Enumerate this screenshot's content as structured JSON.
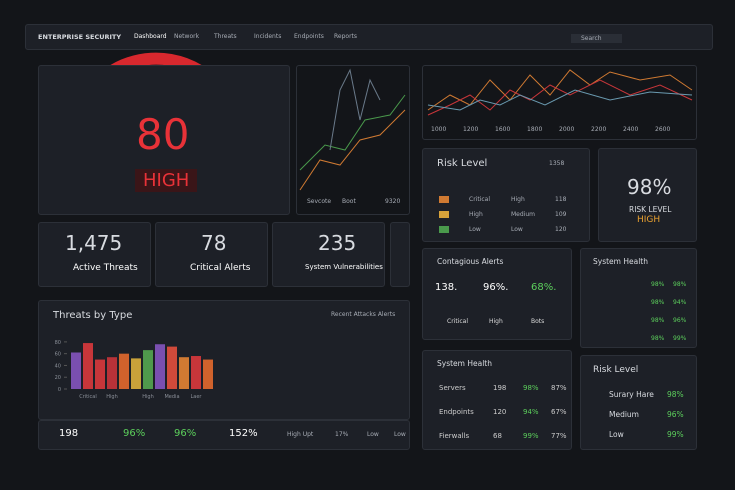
{
  "header": {
    "brand": "ENTERPRISE SECURITY",
    "nav": [
      "Dashboard",
      "Network",
      "Threats",
      "Incidents",
      "Endpoints",
      "Reports"
    ],
    "search": "Search"
  },
  "gauge": {
    "value": "80",
    "level": "HIGH"
  },
  "trend_labels": [
    "1000",
    "1200",
    "1600",
    "1800",
    "2000",
    "2200",
    "2400",
    "2600"
  ],
  "mini_chart": {
    "labels": [
      "Sevcote",
      "Boot",
      "9320"
    ]
  },
  "risk_level": {
    "title": "Risk Level",
    "count": "1358",
    "rows": [
      [
        "Critical",
        "High",
        "118"
      ],
      [
        "High",
        "Medium",
        "109"
      ],
      [
        "Low",
        "Low",
        "120"
      ]
    ]
  },
  "risk_gauge": {
    "value": "98%",
    "label": "RISK LEVEL",
    "level": "HIGH"
  },
  "stats": [
    {
      "value": "1,475",
      "label": "Active Threats"
    },
    {
      "value": "78",
      "label": "Critical Alerts"
    },
    {
      "value": "235",
      "label": "System Vulnerabilities"
    }
  ],
  "threats_by_type": {
    "title": "Threats by Type",
    "link": "Recent Attacks Alerts",
    "chart_data": {
      "type": "bar",
      "categories": [
        null,
        "Critical",
        null,
        "High",
        null,
        null,
        "High",
        null,
        "Media",
        null,
        "Laer",
        null
      ],
      "values": [
        62,
        78,
        50,
        54,
        60,
        52,
        66,
        76,
        72,
        54,
        56,
        50
      ],
      "colors": [
        "#7a4fb0",
        "#c8363a",
        "#c8363a",
        "#b83238",
        "#d0622c",
        "#c9a23a",
        "#4f9a4c",
        "#7a4fb0",
        "#d04a3a",
        "#d07a32",
        "#c8363a",
        "#d0622c"
      ],
      "ylim": [
        0,
        90
      ],
      "yticks": [
        0,
        20,
        40,
        60,
        80
      ]
    }
  },
  "bottom_stats": [
    "198",
    "96%",
    "96%",
    "152%",
    "High Upt",
    "17%",
    "Low",
    "Low"
  ],
  "contagious": {
    "title": "Contagious Alerts",
    "values": [
      "138.",
      "96%.",
      "68%."
    ],
    "legend": [
      "Critical",
      "High",
      "Bots"
    ]
  },
  "system_health_side": {
    "title": "System Health",
    "rows": [
      [
        "98%",
        "98%"
      ],
      [
        "98%",
        "94%"
      ],
      [
        "98%",
        "96%"
      ],
      [
        "98%",
        "99%"
      ]
    ]
  },
  "system_health": {
    "title": "System Health",
    "rows": [
      [
        "Servers",
        "198",
        "98%",
        "87%"
      ],
      [
        "Endpoints",
        "120",
        "94%",
        "67%"
      ],
      [
        "Fierwalls",
        "68",
        "99%",
        "77%"
      ]
    ]
  },
  "risk_list": {
    "title": "Risk Level",
    "rows": [
      [
        "Surary Hare",
        "98%"
      ],
      [
        "Medium",
        "96%"
      ],
      [
        "Low",
        "99%"
      ]
    ]
  }
}
